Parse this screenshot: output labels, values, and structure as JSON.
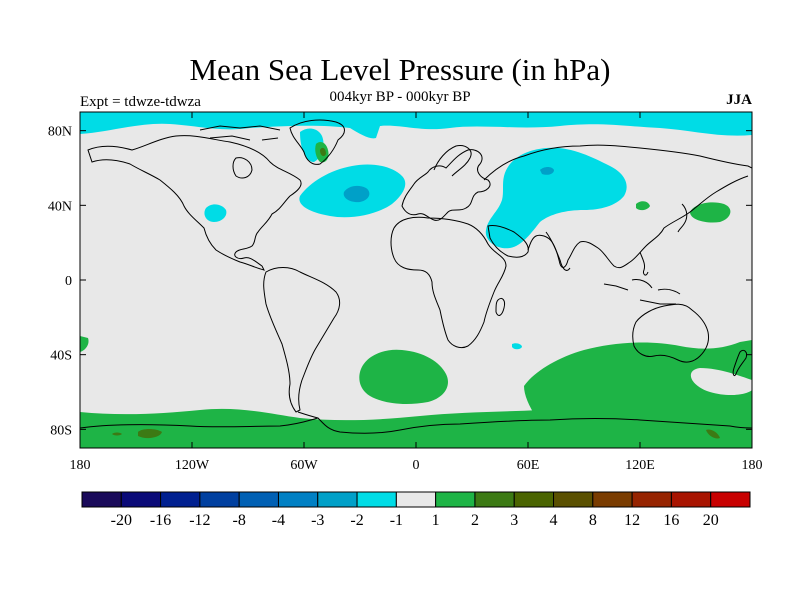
{
  "title": "Mean Sea Level Pressure (in hPa)",
  "subtitle": "004kyr BP - 000kyr BP",
  "experiment": "Expt = tdwze-tdwza",
  "season": "JJA",
  "colors": {
    "background": "#e8e8e8",
    "negative_light": "#00dce6",
    "negative_mid": "#00a0c8",
    "positive_light": "#1eb446",
    "positive_mid": "#3c7a14",
    "coastline": "#000000"
  },
  "chart_data": {
    "type": "heatmap",
    "map_projection": "cylindrical-equidistant",
    "x_ticks": [
      "180",
      "120W",
      "60W",
      "0",
      "60E",
      "120E",
      "180"
    ],
    "y_ticks": [
      "80N",
      "40N",
      "0",
      "40S",
      "80S"
    ],
    "xlim": [
      -180,
      180
    ],
    "ylim": [
      -90,
      90
    ],
    "colorbar": {
      "labels": [
        "-20",
        "-16",
        "-12",
        "-8",
        "-4",
        "-3",
        "-2",
        "-1",
        "1",
        "2",
        "3",
        "4",
        "8",
        "12",
        "16",
        "20"
      ],
      "colors": [
        "#1a0a5a",
        "#0a0a78",
        "#002090",
        "#0040a0",
        "#0060b4",
        "#0080c4",
        "#00a0c8",
        "#00dce6",
        "#e8e8e8",
        "#1eb446",
        "#3c7a14",
        "#4a6400",
        "#5a5000",
        "#7a3c00",
        "#962400",
        "#a81400",
        "#c80000"
      ]
    }
  }
}
